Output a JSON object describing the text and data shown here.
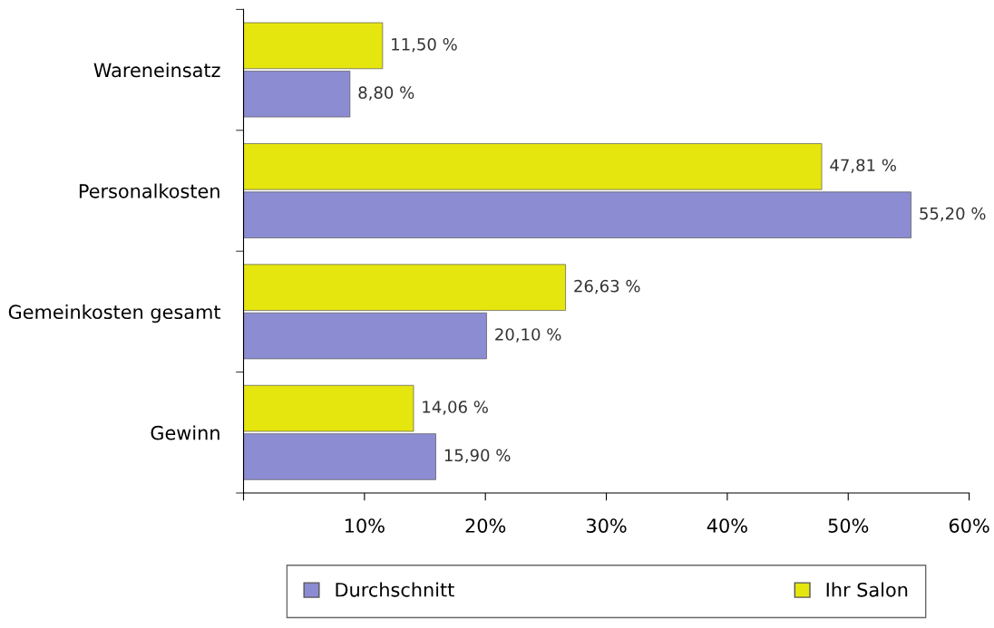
{
  "chart_data": {
    "type": "bar",
    "orientation": "horizontal",
    "categories": [
      "Wareneinsatz",
      "Personalkosten",
      "Gemeinkosten gesamt",
      "Gewinn"
    ],
    "series": [
      {
        "name": "Durchschnitt",
        "color": "#8c8cd2",
        "values": [
          8.8,
          55.2,
          20.1,
          15.9
        ],
        "value_labels": [
          "8,80 %",
          "55,20 %",
          "20,10 %",
          "15,90 %"
        ]
      },
      {
        "name": "Ihr Salon",
        "color": "#e6e60f",
        "values": [
          11.5,
          47.81,
          26.63,
          14.06
        ],
        "value_labels": [
          "11,50 %",
          "47,81 %",
          "26,63 %",
          "14,06 %"
        ]
      }
    ],
    "xlim": [
      0,
      60
    ],
    "xticks": [
      {
        "value": 0,
        "label": null
      },
      {
        "value": 10,
        "label": "10%"
      },
      {
        "value": 20,
        "label": "20%"
      },
      {
        "value": 30,
        "label": "30%"
      },
      {
        "value": 40,
        "label": "40%"
      },
      {
        "value": 50,
        "label": "50%"
      },
      {
        "value": 60,
        "label": "60%"
      }
    ],
    "grid": false,
    "legend": "bottom"
  }
}
